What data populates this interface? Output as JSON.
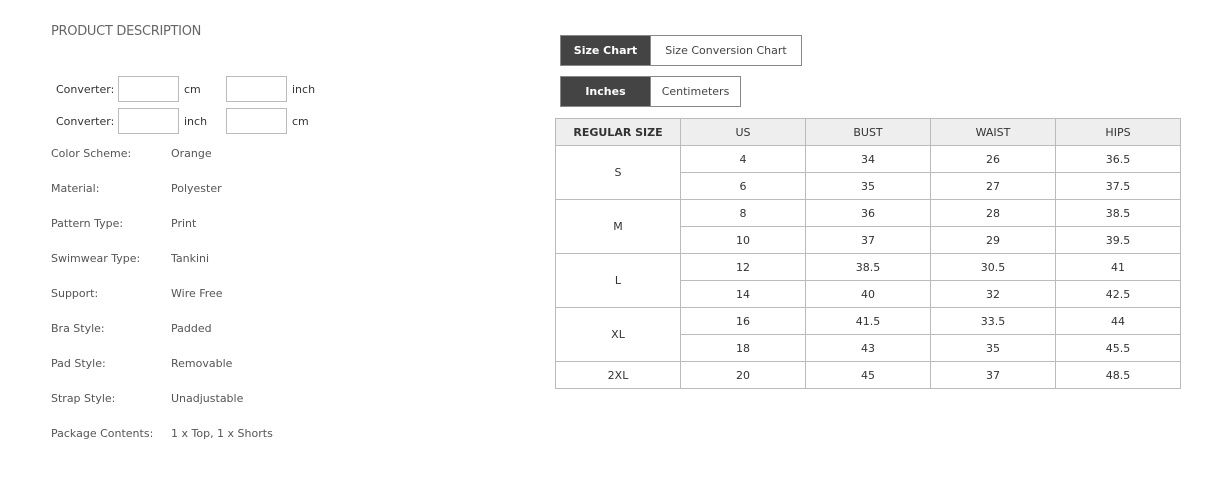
{
  "title": "PRODUCT DESCRIPTION",
  "converters": [
    {
      "label": "Converter:",
      "unit1": "cm",
      "unit2": "inch",
      "value1": "",
      "value2": ""
    },
    {
      "label": "Converter:",
      "unit1": "inch",
      "unit2": "cm",
      "value1": "",
      "value2": ""
    }
  ],
  "attributes": [
    {
      "key": "Color Scheme:",
      "value": "Orange"
    },
    {
      "key": "Material:",
      "value": "Polyester"
    },
    {
      "key": "Pattern Type:",
      "value": "Print"
    },
    {
      "key": "Swimwear Type:",
      "value": "Tankini"
    },
    {
      "key": "Support:",
      "value": "Wire Free"
    },
    {
      "key": "Bra Style:",
      "value": "Padded"
    },
    {
      "key": "Pad Style:",
      "value": "Removable"
    },
    {
      "key": "Strap Style:",
      "value": "Unadjustable"
    },
    {
      "key": "Package Contents:",
      "value": "1 x Top, 1 x Shorts"
    }
  ],
  "chart_tabs": [
    {
      "label": "Size Chart",
      "active": true
    },
    {
      "label": "Size Conversion Chart",
      "active": false
    }
  ],
  "unit_tabs": [
    {
      "label": "Inches",
      "active": true
    },
    {
      "label": "Centimeters",
      "active": false
    }
  ],
  "table": {
    "headers": [
      "REGULAR SIZE",
      "US",
      "BUST",
      "WAIST",
      "HIPS"
    ],
    "groups": [
      {
        "size": "S",
        "rows": [
          [
            "4",
            "34",
            "26",
            "36.5"
          ],
          [
            "6",
            "35",
            "27",
            "37.5"
          ]
        ]
      },
      {
        "size": "M",
        "rows": [
          [
            "8",
            "36",
            "28",
            "38.5"
          ],
          [
            "10",
            "37",
            "29",
            "39.5"
          ]
        ]
      },
      {
        "size": "L",
        "rows": [
          [
            "12",
            "38.5",
            "30.5",
            "41"
          ],
          [
            "14",
            "40",
            "32",
            "42.5"
          ]
        ]
      },
      {
        "size": "XL",
        "rows": [
          [
            "16",
            "41.5",
            "33.5",
            "44"
          ],
          [
            "18",
            "43",
            "35",
            "45.5"
          ]
        ]
      },
      {
        "size": "2XL",
        "rows": [
          [
            "20",
            "45",
            "37",
            "48.5"
          ]
        ]
      }
    ]
  }
}
